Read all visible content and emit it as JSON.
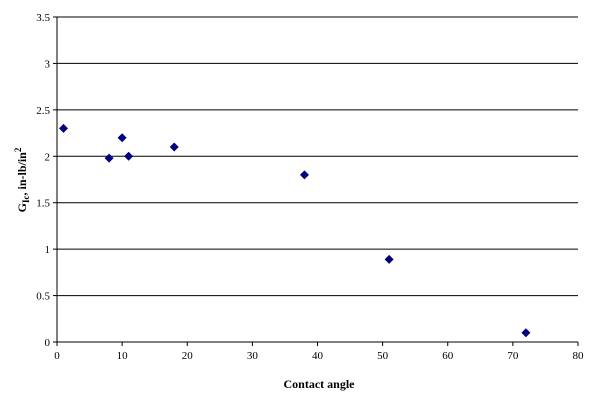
{
  "chart_data": {
    "type": "scatter",
    "title": "",
    "xlabel": "Contact angle",
    "ylabel": {
      "prefix": "G",
      "subscript": "Ic",
      "middle": ", in-lb/in",
      "superscript": "2"
    },
    "xlim": [
      0,
      80
    ],
    "ylim": [
      0,
      3.5
    ],
    "x_ticks": [
      "0",
      "10",
      "20",
      "30",
      "40",
      "50",
      "60",
      "70",
      "80"
    ],
    "y_ticks": [
      "0",
      "0.5",
      "1",
      "1.5",
      "2",
      "2.5",
      "3",
      "3.5"
    ],
    "grid": {
      "horizontal": true,
      "vertical": false
    },
    "legend": "none",
    "marker": "diamond",
    "colors": {
      "marker": "#00007f",
      "grid": "#000000",
      "axis": "#000000"
    },
    "series": [
      {
        "x": [
          1,
          8,
          10,
          11,
          18,
          38,
          51,
          72
        ],
        "y": [
          2.3,
          1.98,
          2.2,
          2.0,
          2.1,
          1.8,
          0.89,
          0.1
        ]
      }
    ]
  }
}
